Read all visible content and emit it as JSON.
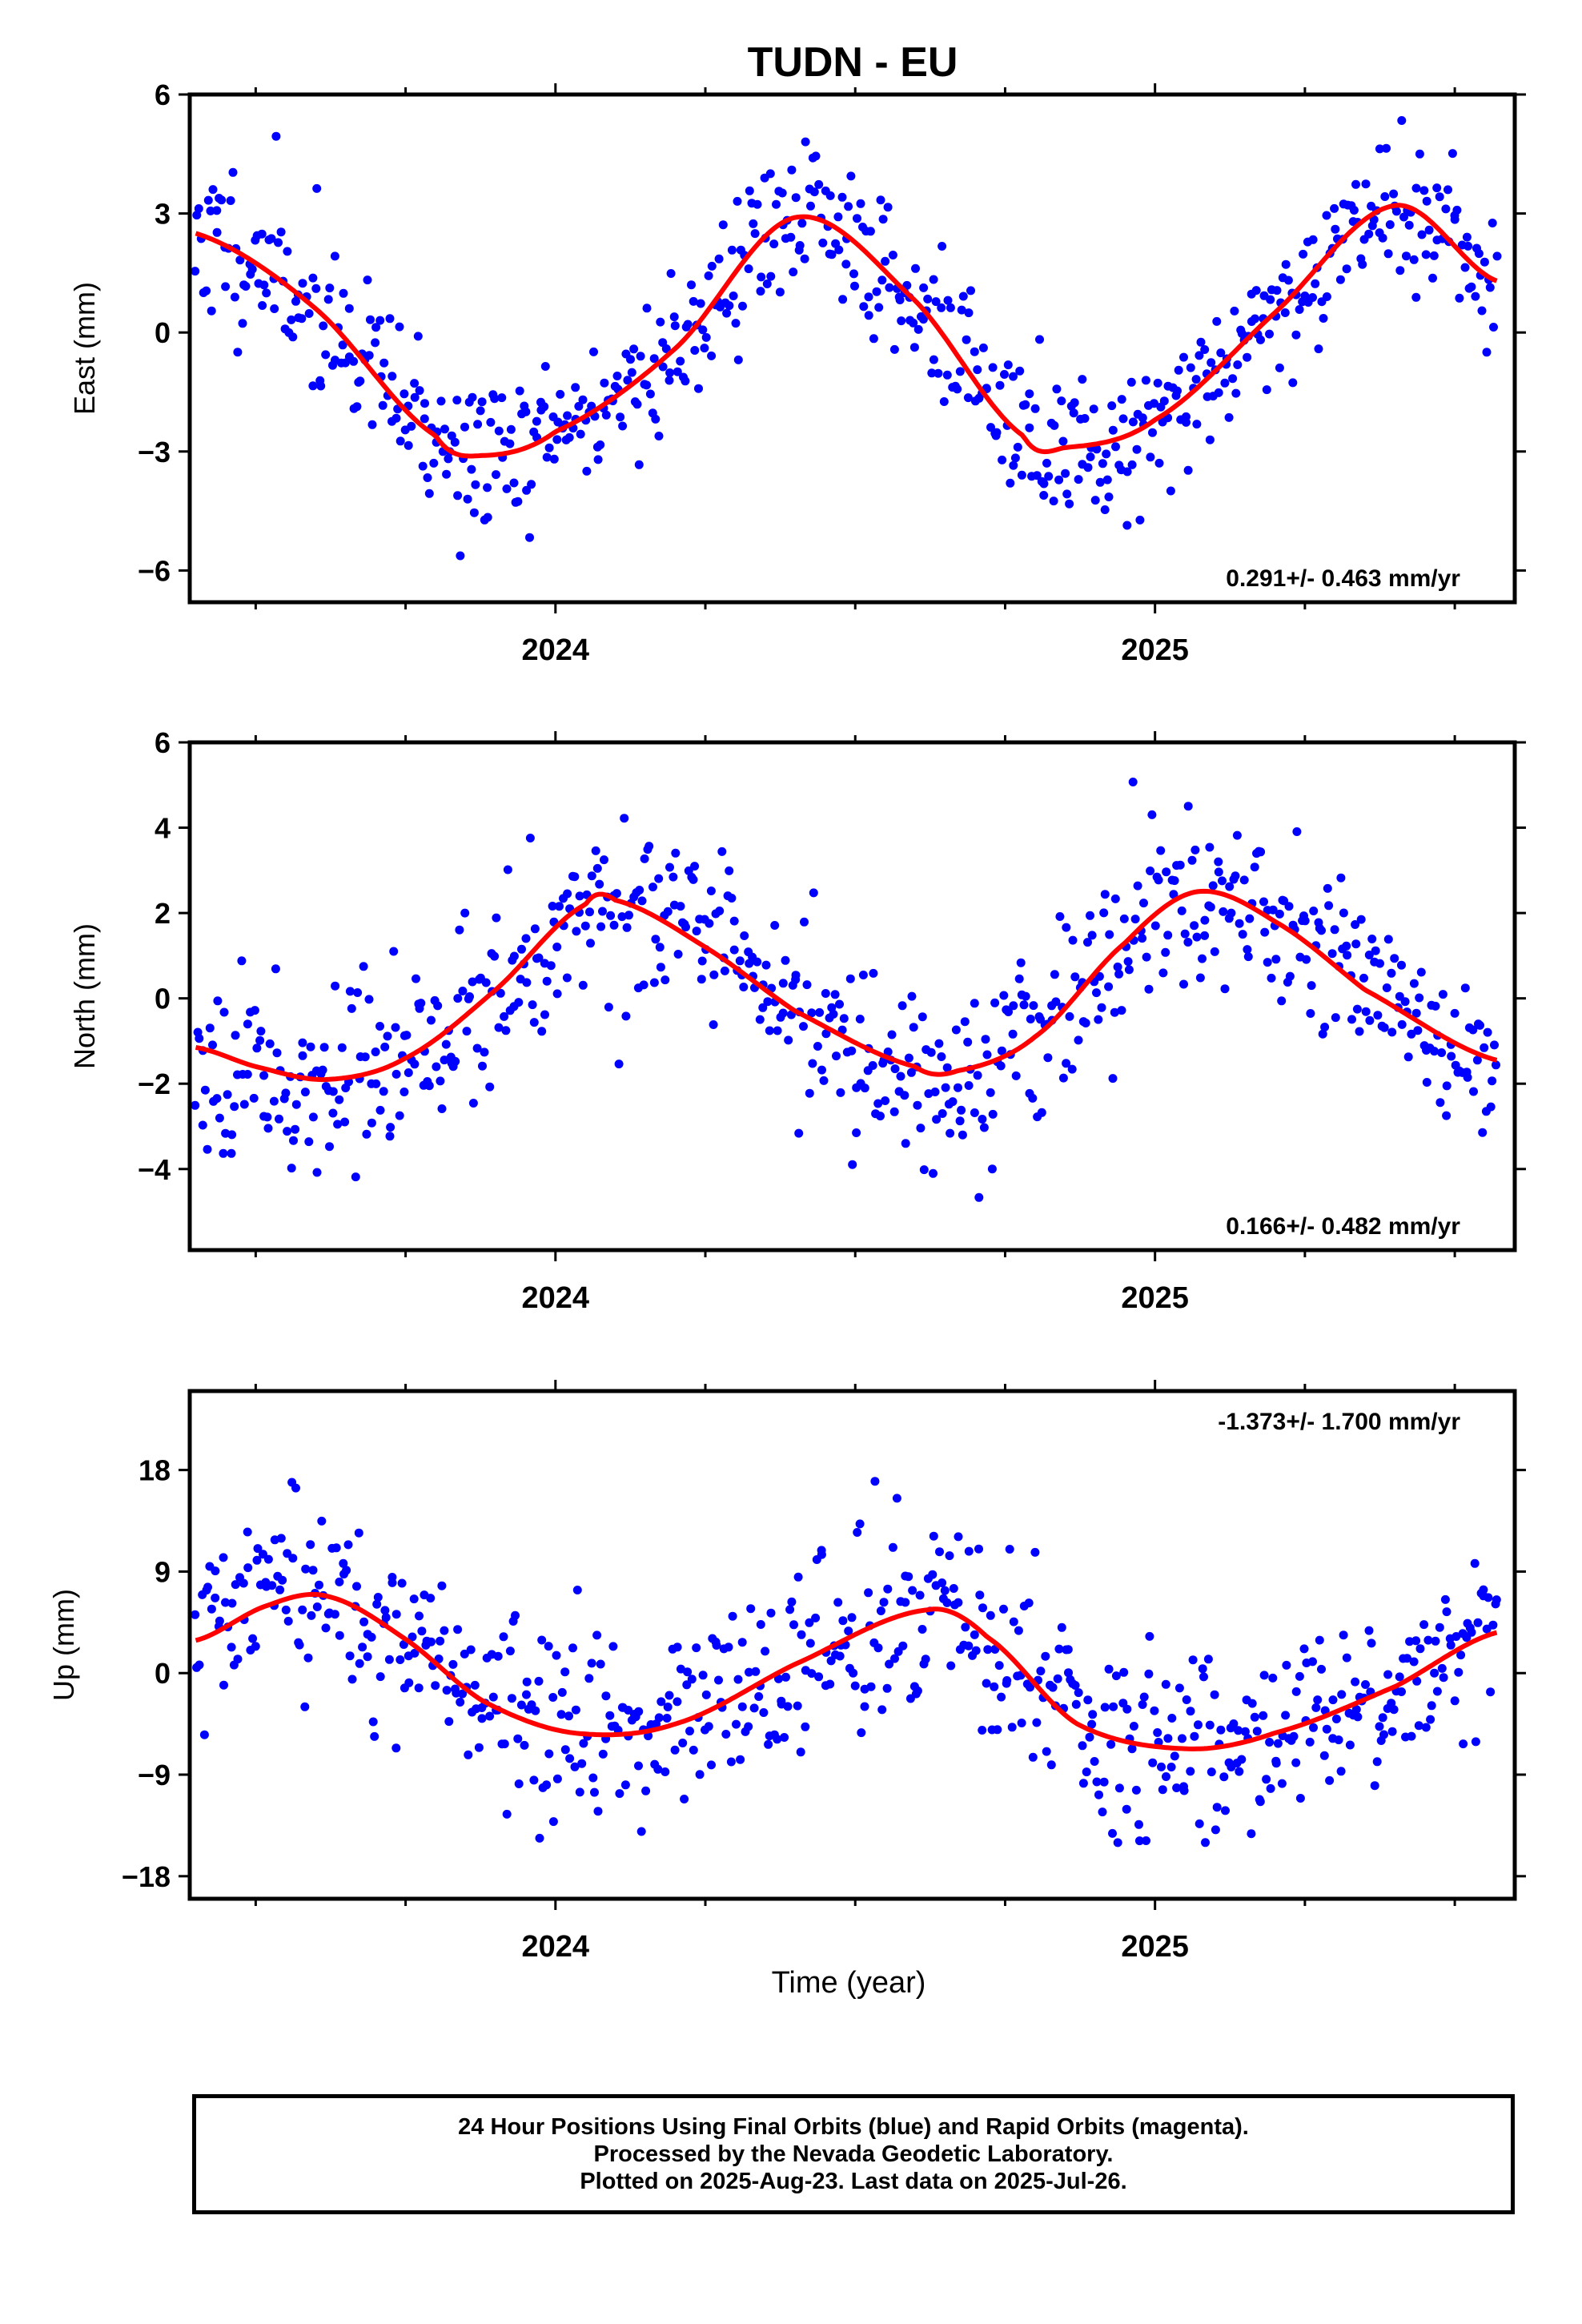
{
  "title": "TUDN - EU",
  "xlabel": "Time (year)",
  "caption": [
    "24 Hour Positions Using Final Orbits (blue) and Rapid Orbits (magenta).",
    "Processed by the Nevada Geodetic Laboratory.",
    "Plotted on 2025-Aug-23. Last data on 2025-Jul-26."
  ],
  "colors": {
    "data": "#0000ff",
    "model": "#ff0000",
    "axis": "#000000"
  },
  "chart_data": [
    {
      "type": "scatter",
      "ylabel": "East (mm)",
      "rate": "0.291+/- 0.463 mm/yr",
      "rate_position": "bottom-right",
      "xlim": [
        2023.39,
        2025.6
      ],
      "ylim": [
        -6.8,
        6.0
      ],
      "yticks": [
        6,
        3,
        0,
        -3,
        -6
      ],
      "ytick_labels": [
        "6",
        "3",
        "0",
        "−3",
        "−6"
      ],
      "xticks_major": [
        2024,
        2025
      ],
      "xtick_labels": [
        "2024",
        "2025"
      ],
      "model": {
        "offset": -0.1,
        "trend": 0.291,
        "annual": [
          {
            "t": 2023.4,
            "v": 2.5
          },
          {
            "t": 2023.6,
            "v": 0.6
          },
          {
            "t": 2023.8,
            "v": -2.6
          },
          {
            "t": 2023.88,
            "v": -3.1
          },
          {
            "t": 2024.0,
            "v": -2.5
          },
          {
            "t": 2024.2,
            "v": -0.4
          },
          {
            "t": 2024.4,
            "v": 2.9
          },
          {
            "t": 2024.6,
            "v": 0.8
          },
          {
            "t": 2024.78,
            "v": -2.6
          },
          {
            "t": 2024.85,
            "v": -2.9
          },
          {
            "t": 2025.0,
            "v": -2.2
          },
          {
            "t": 2025.2,
            "v": 0.5
          },
          {
            "t": 2025.4,
            "v": 3.2
          },
          {
            "t": 2025.57,
            "v": 1.3
          }
        ]
      },
      "scatter": {
        "count": 640,
        "noise": 1.0,
        "seed": 11,
        "t_start": 2023.4,
        "t_end": 2025.57
      }
    },
    {
      "type": "scatter",
      "ylabel": "North (mm)",
      "rate": "0.166+/- 0.482 mm/yr",
      "rate_position": "bottom-right",
      "xlim": [
        2023.39,
        2025.6
      ],
      "ylim": [
        -5.9,
        6.0
      ],
      "yticks": [
        6,
        4,
        2,
        0,
        -2,
        -4
      ],
      "ytick_labels": [
        "6",
        "4",
        "2",
        "0",
        "−2",
        "−4"
      ],
      "xticks_major": [
        2024,
        2025
      ],
      "xtick_labels": [
        "2024",
        "2025"
      ],
      "model": {
        "annual": [
          {
            "t": 2023.4,
            "v": -1.15
          },
          {
            "t": 2023.5,
            "v": -1.6
          },
          {
            "t": 2023.62,
            "v": -1.9
          },
          {
            "t": 2023.75,
            "v": -1.4
          },
          {
            "t": 2023.9,
            "v": 0.2
          },
          {
            "t": 2024.05,
            "v": 2.2
          },
          {
            "t": 2024.1,
            "v": 2.3
          },
          {
            "t": 2024.25,
            "v": 1.2
          },
          {
            "t": 2024.4,
            "v": -0.3
          },
          {
            "t": 2024.6,
            "v": -1.6
          },
          {
            "t": 2024.67,
            "v": -1.7
          },
          {
            "t": 2024.8,
            "v": -0.9
          },
          {
            "t": 2024.95,
            "v": 1.3
          },
          {
            "t": 2025.07,
            "v": 2.5
          },
          {
            "t": 2025.2,
            "v": 1.8
          },
          {
            "t": 2025.35,
            "v": 0.2
          },
          {
            "t": 2025.57,
            "v": -1.45
          }
        ]
      },
      "scatter": {
        "count": 640,
        "noise": 1.05,
        "seed": 23,
        "t_start": 2023.4,
        "t_end": 2025.57
      }
    },
    {
      "type": "scatter",
      "ylabel": "Up (mm)",
      "rate": "-1.373+/- 1.700 mm/yr",
      "rate_position": "top-right",
      "xlim": [
        2023.39,
        2025.6
      ],
      "ylim": [
        -20.0,
        25.0
      ],
      "yticks": [
        18,
        9,
        0,
        -9,
        -18
      ],
      "ytick_labels": [
        "18",
        "9",
        "0",
        "−9",
        "−18"
      ],
      "xticks_major": [
        2024,
        2025
      ],
      "xtick_labels": [
        "2024",
        "2025"
      ],
      "model": {
        "annual": [
          {
            "t": 2023.4,
            "v": 2.9
          },
          {
            "t": 2023.52,
            "v": 6.0
          },
          {
            "t": 2023.62,
            "v": 6.8
          },
          {
            "t": 2023.75,
            "v": 3.0
          },
          {
            "t": 2023.88,
            "v": -2.5
          },
          {
            "t": 2024.03,
            "v": -5.3
          },
          {
            "t": 2024.2,
            "v": -4.5
          },
          {
            "t": 2024.4,
            "v": 0.8
          },
          {
            "t": 2024.62,
            "v": 5.6
          },
          {
            "t": 2024.72,
            "v": 3.2
          },
          {
            "t": 2024.87,
            "v": -4.5
          },
          {
            "t": 2025.05,
            "v": -6.7
          },
          {
            "t": 2025.2,
            "v": -5.3
          },
          {
            "t": 2025.4,
            "v": -1.2
          },
          {
            "t": 2025.57,
            "v": 3.6
          }
        ]
      },
      "scatter": {
        "count": 640,
        "noise": 4.2,
        "seed": 37,
        "t_start": 2023.4,
        "t_end": 2025.57
      }
    }
  ]
}
